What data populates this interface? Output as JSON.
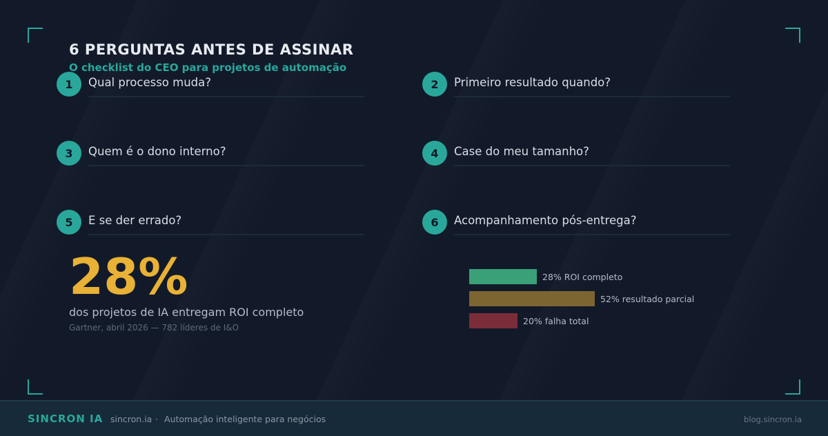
{
  "header": {
    "title": "6 PERGUNTAS ANTES DE ASSINAR",
    "subtitle": "O checklist do CEO para projetos de automação"
  },
  "questions": [
    {
      "num": "1",
      "text": "Qual processo muda?"
    },
    {
      "num": "2",
      "text": "Primeiro resultado quando?"
    },
    {
      "num": "3",
      "text": "Quem é o dono interno?"
    },
    {
      "num": "4",
      "text": "Case do meu tamanho?"
    },
    {
      "num": "5",
      "text": "E se der errado?"
    },
    {
      "num": "6",
      "text": "Acompanhamento pós-entrega?"
    }
  ],
  "stat": {
    "value": "28%",
    "description": "dos projetos de IA entregam ROI completo",
    "source": "Gartner, abril 2026 — 782 líderes de I&O"
  },
  "chart_data": {
    "type": "bar",
    "orientation": "horizontal",
    "categories": [
      "ROI completo",
      "resultado parcial",
      "falha total"
    ],
    "values": [
      28,
      52,
      20
    ],
    "labels": [
      "28% ROI completo",
      "52% resultado parcial",
      "20% falha total"
    ],
    "colors": [
      "#3aa077",
      "#7d6532",
      "#7a2d39"
    ]
  },
  "footer": {
    "brand": "SINCRON IA",
    "site": "sincron.ia",
    "separator": "·",
    "tagline": "Automação inteligente para negócios",
    "blog": "blog.sincron.ia"
  }
}
